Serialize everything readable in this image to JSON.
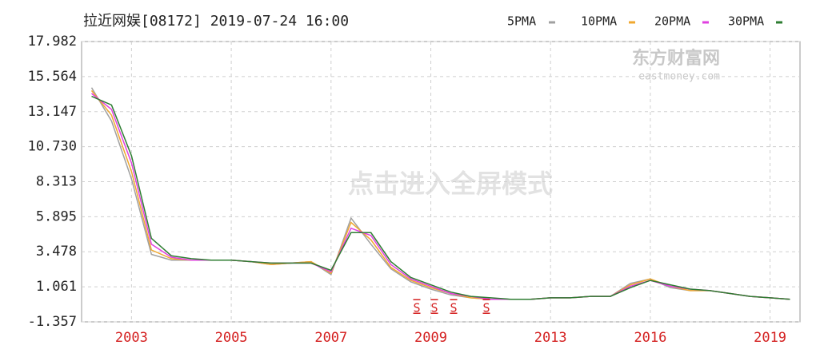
{
  "chart_data": {
    "type": "line",
    "title": "拉近网娱[08172] 2019-07-24 16:00",
    "annotations": [
      "东方财富网",
      "eastmoney.com",
      "点击进入全屏模式"
    ],
    "markers": [
      "S",
      "S",
      "S",
      "S"
    ],
    "categories": [
      null,
      null,
      "2003",
      null,
      null,
      null,
      null,
      "2005",
      null,
      null,
      null,
      null,
      "2007",
      null,
      null,
      null,
      null,
      "2009",
      null,
      null,
      null,
      null,
      null,
      "2013",
      null,
      null,
      null,
      null,
      "2016",
      null,
      null,
      null,
      null,
      null,
      "2019",
      null
    ],
    "series": [
      {
        "name": "5PMA",
        "color": "#a0a0a0",
        "values": [
          14.8,
          12.5,
          8.5,
          3.3,
          2.9,
          2.9,
          2.9,
          2.9,
          2.8,
          2.6,
          2.7,
          2.8,
          1.9,
          5.8,
          4.0,
          2.3,
          1.4,
          0.9,
          0.5,
          0.3,
          0.2,
          0.2,
          0.2,
          0.3,
          0.3,
          0.4,
          0.4,
          1.3,
          1.6,
          1.0,
          0.8,
          0.8,
          0.6,
          0.4,
          0.3,
          0.2
        ]
      },
      {
        "name": "10PMA",
        "color": "#f0a830",
        "values": [
          14.6,
          12.9,
          9.0,
          3.6,
          3.0,
          2.9,
          2.9,
          2.9,
          2.8,
          2.6,
          2.7,
          2.8,
          2.0,
          5.5,
          4.3,
          2.4,
          1.5,
          1.0,
          0.6,
          0.3,
          0.2,
          0.2,
          0.2,
          0.3,
          0.3,
          0.4,
          0.4,
          1.2,
          1.6,
          1.1,
          0.8,
          0.8,
          0.6,
          0.4,
          0.3,
          0.2
        ]
      },
      {
        "name": "20PMA",
        "color": "#e040e0",
        "values": [
          14.4,
          13.3,
          9.6,
          4.0,
          3.1,
          2.9,
          2.9,
          2.9,
          2.8,
          2.7,
          2.7,
          2.7,
          2.1,
          5.1,
          4.6,
          2.6,
          1.6,
          1.1,
          0.6,
          0.4,
          0.2,
          0.2,
          0.2,
          0.3,
          0.3,
          0.4,
          0.4,
          1.1,
          1.5,
          1.1,
          0.9,
          0.8,
          0.6,
          0.4,
          0.3,
          0.2
        ]
      },
      {
        "name": "30PMA",
        "color": "#2e7d32",
        "values": [
          14.2,
          13.6,
          10.1,
          4.4,
          3.2,
          3.0,
          2.9,
          2.9,
          2.8,
          2.7,
          2.7,
          2.7,
          2.2,
          4.8,
          4.8,
          2.8,
          1.7,
          1.2,
          0.7,
          0.4,
          0.3,
          0.2,
          0.2,
          0.3,
          0.3,
          0.4,
          0.4,
          1.0,
          1.5,
          1.2,
          0.9,
          0.8,
          0.6,
          0.4,
          0.3,
          0.2
        ]
      }
    ],
    "ylim": [
      -1.357,
      17.982
    ],
    "yticks": [
      -1.357,
      1.061,
      3.478,
      5.895,
      8.313,
      {
        "value": 10.73,
        "label": "10.730"
      },
      13.147,
      15.564,
      17.982
    ],
    "grid": true
  }
}
